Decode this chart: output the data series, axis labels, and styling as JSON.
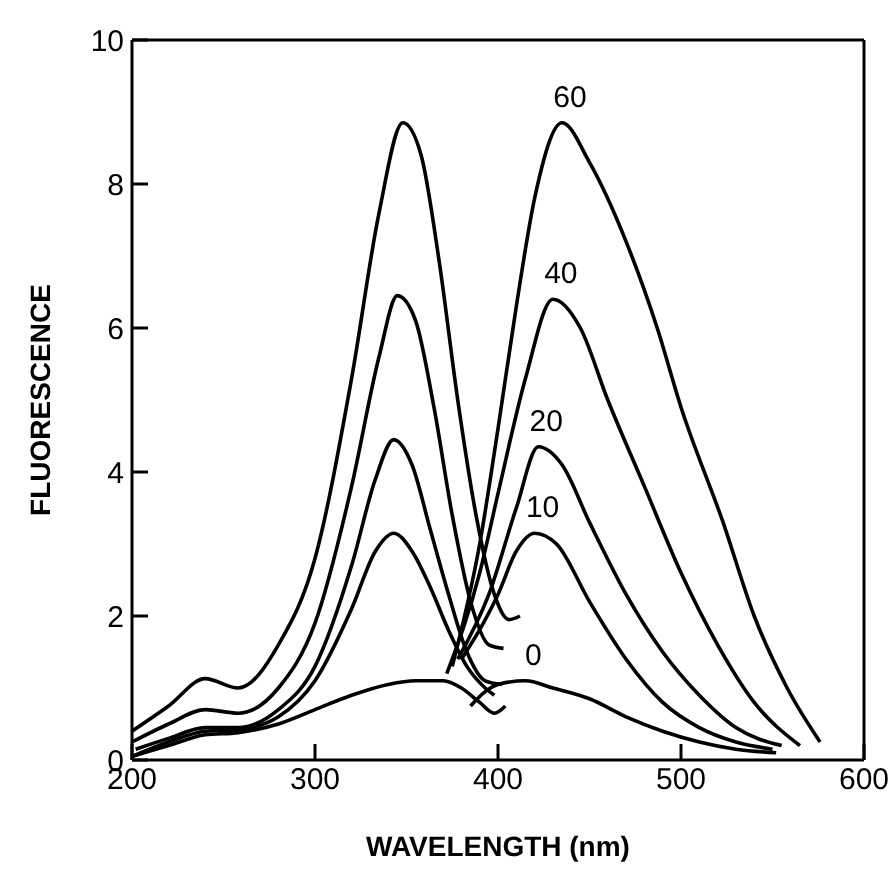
{
  "chart_data": {
    "type": "line",
    "xlabel": "WAVELENGTH (nm)",
    "ylabel": "FLUORESCENCE",
    "xlim": [
      200,
      600
    ],
    "xticks": [
      200,
      300,
      400,
      500,
      600
    ],
    "ylim": [
      0,
      10
    ],
    "yticks": [
      0,
      2,
      4,
      6,
      8,
      10
    ],
    "series": [
      {
        "color": "#000000",
        "x": [
          200,
          220,
          240,
          258,
          280,
          300,
          320,
          335,
          348,
          358,
          368,
          378,
          388,
          398,
          406,
          412
        ],
        "values": [
          0.4,
          0.75,
          1.13,
          1.0,
          1.6,
          2.8,
          5.3,
          7.6,
          8.85,
          8.4,
          6.9,
          5.0,
          3.4,
          2.3,
          1.95,
          2.0
        ]
      },
      {
        "color": "#000000",
        "x": [
          200,
          220,
          240,
          258,
          280,
          300,
          320,
          335,
          345,
          355,
          365,
          375,
          385,
          395,
          403
        ],
        "values": [
          0.25,
          0.5,
          0.7,
          0.65,
          1.0,
          1.9,
          3.8,
          5.6,
          6.45,
          6.1,
          4.9,
          3.4,
          2.2,
          1.6,
          1.55
        ]
      },
      {
        "color": "#000000",
        "x": [
          202,
          220,
          240,
          258,
          280,
          300,
          320,
          333,
          343,
          353,
          363,
          373,
          383,
          393,
          402
        ],
        "values": [
          0.15,
          0.3,
          0.45,
          0.45,
          0.7,
          1.3,
          2.7,
          3.9,
          4.45,
          4.1,
          3.2,
          2.3,
          1.5,
          1.1,
          1.05
        ]
      },
      {
        "color": "#000000",
        "x": [
          200,
          220,
          240,
          258,
          280,
          300,
          320,
          333,
          343,
          353,
          363,
          373,
          383,
          393,
          398
        ],
        "values": [
          0.05,
          0.25,
          0.4,
          0.42,
          0.6,
          1.1,
          2.1,
          2.9,
          3.15,
          2.9,
          2.4,
          1.8,
          1.3,
          1.0,
          0.9
        ]
      },
      {
        "color": "#000000",
        "x": [
          200,
          220,
          240,
          258,
          280,
          300,
          320,
          340,
          355,
          370,
          380,
          390,
          398,
          404
        ],
        "values": [
          0.05,
          0.2,
          0.35,
          0.38,
          0.5,
          0.7,
          0.9,
          1.05,
          1.1,
          1.1,
          1.0,
          0.8,
          0.65,
          0.75
        ]
      },
      {
        "name": "60",
        "color": "#000000",
        "x": [
          375,
          390,
          400,
          410,
          420,
          435,
          450,
          470,
          487,
          500,
          523,
          540,
          558,
          576
        ],
        "values": [
          1.3,
          3.0,
          4.6,
          6.3,
          7.8,
          8.85,
          8.3,
          7.2,
          6.0,
          4.9,
          3.3,
          2.0,
          1.0,
          0.25
        ]
      },
      {
        "name": "40",
        "color": "#000000",
        "x": [
          372,
          390,
          400,
          415,
          430,
          445,
          460,
          480,
          500,
          520,
          540,
          565
        ],
        "values": [
          1.2,
          2.6,
          3.7,
          5.3,
          6.4,
          6.0,
          5.0,
          3.8,
          2.6,
          1.6,
          0.8,
          0.2
        ]
      },
      {
        "name": "20",
        "color": "#000000",
        "x": [
          378,
          395,
          410,
          422,
          435,
          450,
          470,
          490,
          510,
          530,
          555
        ],
        "values": [
          1.4,
          2.3,
          3.5,
          4.35,
          4.1,
          3.3,
          2.3,
          1.5,
          0.9,
          0.45,
          0.2
        ]
      },
      {
        "name": "10",
        "color": "#000000",
        "x": [
          380,
          392,
          400,
          410,
          420,
          432,
          450,
          470,
          490,
          510,
          530,
          550
        ],
        "values": [
          1.4,
          1.9,
          2.3,
          2.9,
          3.15,
          3.0,
          2.2,
          1.4,
          0.8,
          0.45,
          0.25,
          0.15
        ]
      },
      {
        "name": "0",
        "color": "#000000",
        "x": [
          385,
          393,
          400,
          415,
          430,
          450,
          470,
          490,
          510,
          530,
          552
        ],
        "values": [
          0.75,
          0.95,
          1.05,
          1.1,
          1.0,
          0.85,
          0.6,
          0.4,
          0.25,
          0.15,
          0.1
        ]
      }
    ]
  }
}
